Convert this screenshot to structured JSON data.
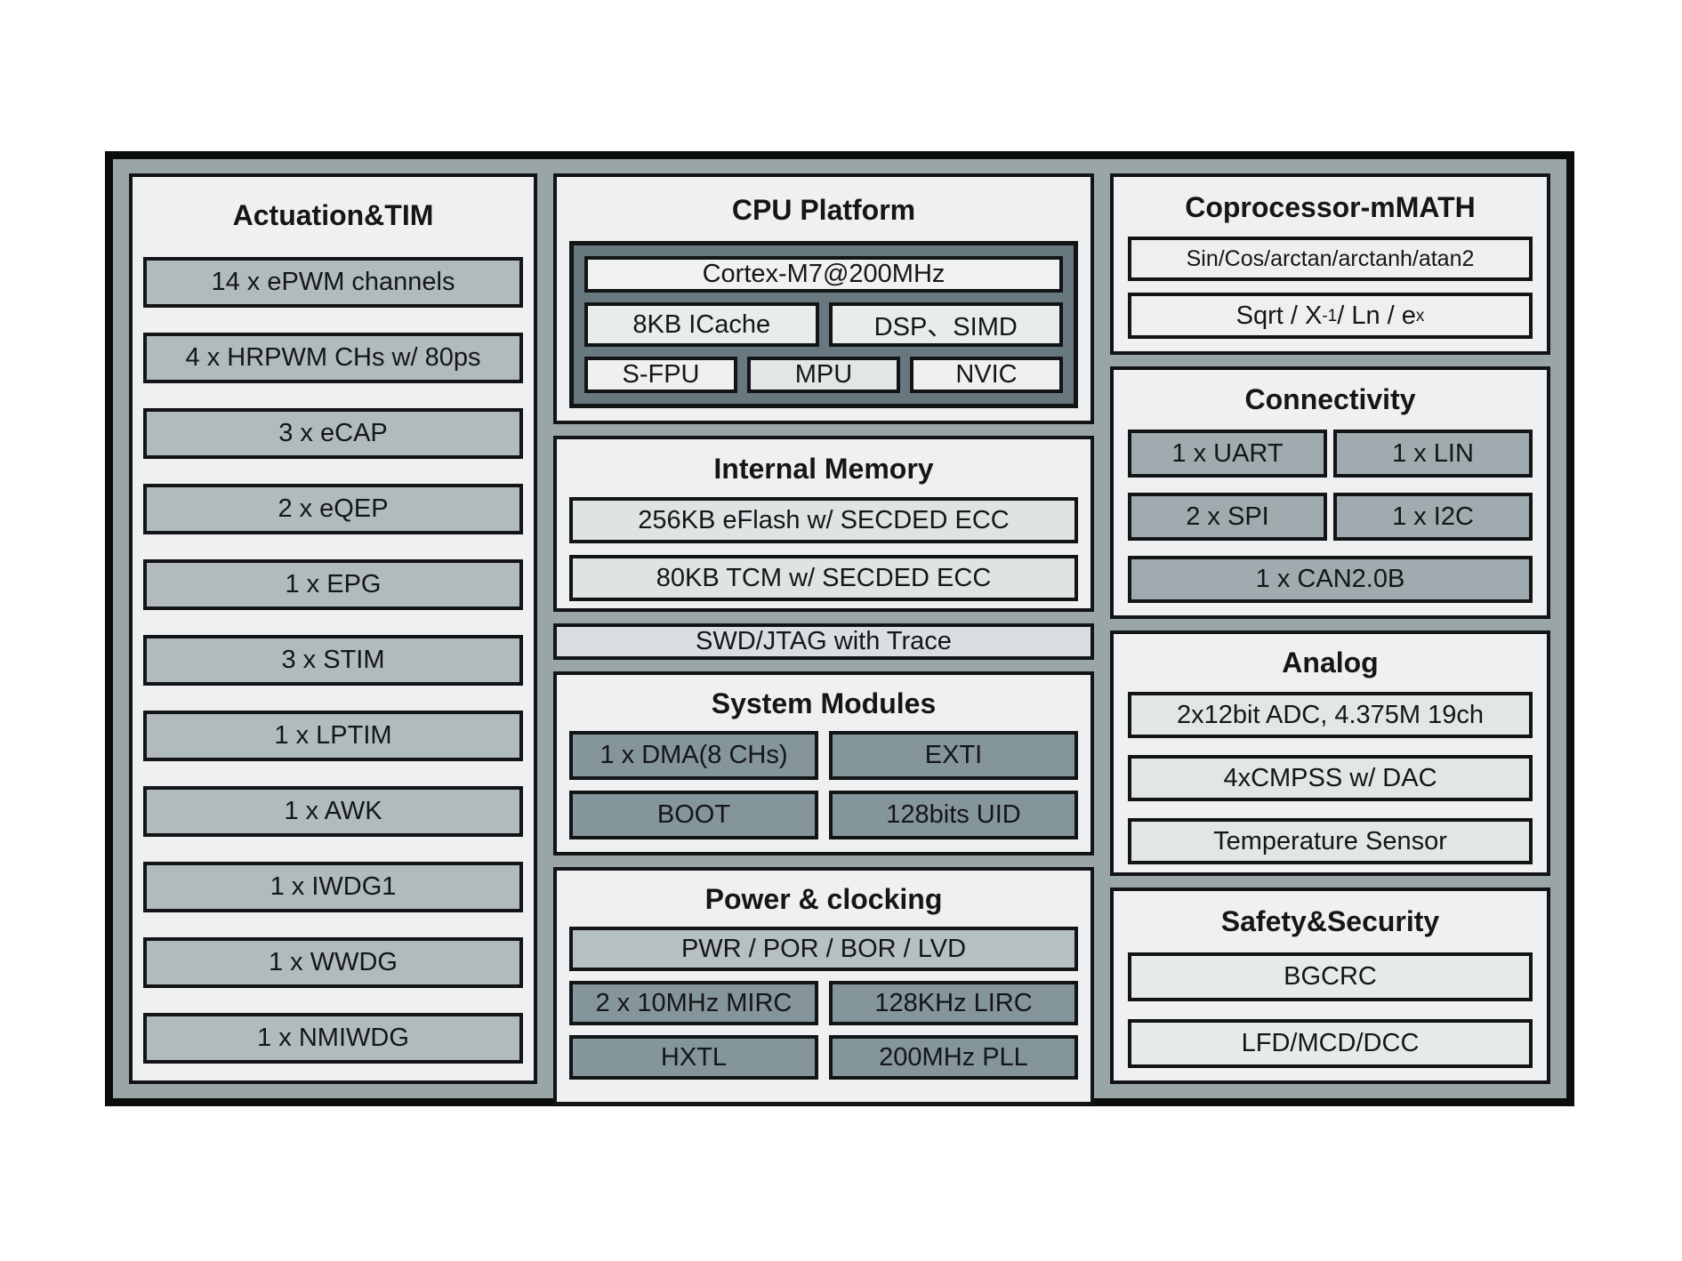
{
  "actuation": {
    "title": "Actuation&TIM",
    "items": [
      "14 x ePWM channels",
      "4 x HRPWM CHs w/ 80ps",
      "3 x eCAP",
      "2 x eQEP",
      "1 x EPG",
      "3 x STIM",
      "1 x LPTIM",
      "1 x AWK",
      "1 x IWDG1",
      "1 x WWDG",
      "1 x NMIWDG"
    ]
  },
  "cpu": {
    "title": "CPU Platform",
    "core": "Cortex-M7@200MHz",
    "row2": [
      "8KB ICache",
      "DSP、SIMD"
    ],
    "row3": [
      "S-FPU",
      "MPU",
      "NVIC"
    ]
  },
  "memory": {
    "title": "Internal Memory",
    "items": [
      "256KB eFlash w/ SECDED ECC",
      "80KB TCM w/ SECDED ECC"
    ]
  },
  "debug": {
    "label": "SWD/JTAG with Trace"
  },
  "system": {
    "title": "System Modules",
    "rows": [
      [
        "1 x DMA(8 CHs)",
        "EXTI"
      ],
      [
        "BOOT",
        "128bits UID"
      ]
    ]
  },
  "power": {
    "title": "Power & clocking",
    "bar": "PWR / POR / BOR / LVD",
    "rows": [
      [
        "2 x 10MHz MIRC",
        "128KHz LIRC"
      ],
      [
        "HXTL",
        "200MHz PLL"
      ]
    ]
  },
  "coprocessor": {
    "title": "Coprocessor-mMATH",
    "box1": "Sin/Cos/arctan/arctanh/atan2",
    "box2": {
      "b1": "Sqrt / X",
      "s1": "-1",
      "b2": " / Ln / e",
      "s2": "x"
    }
  },
  "connectivity": {
    "title": "Connectivity",
    "rows": [
      [
        "1 x UART",
        "1 x LIN"
      ],
      [
        "2 x SPI",
        "1 x I2C"
      ]
    ],
    "wide": "1 x CAN2.0B"
  },
  "analog": {
    "title": "Analog",
    "items": [
      "2x12bit ADC, 4.375M 19ch",
      "4xCMPSS w/ DAC",
      "Temperature Sensor"
    ]
  },
  "safety": {
    "title": "Safety&Security",
    "items": [
      "BGCRC",
      "LFD/MCD/DCC"
    ]
  },
  "colors": {
    "frame_fill": "#9aa5a8",
    "panel_fill": "#eef0f1",
    "box_medium_gray": "#b1bbbe",
    "box_dark_gray": "#84959b",
    "box_connectivity_gray": "#9fabae",
    "cpu_core_fill": "#67797f",
    "box_light_fill": "#e2e6e7",
    "pwr_bar_fill": "#b6bfc1",
    "border_black": "#121415"
  }
}
